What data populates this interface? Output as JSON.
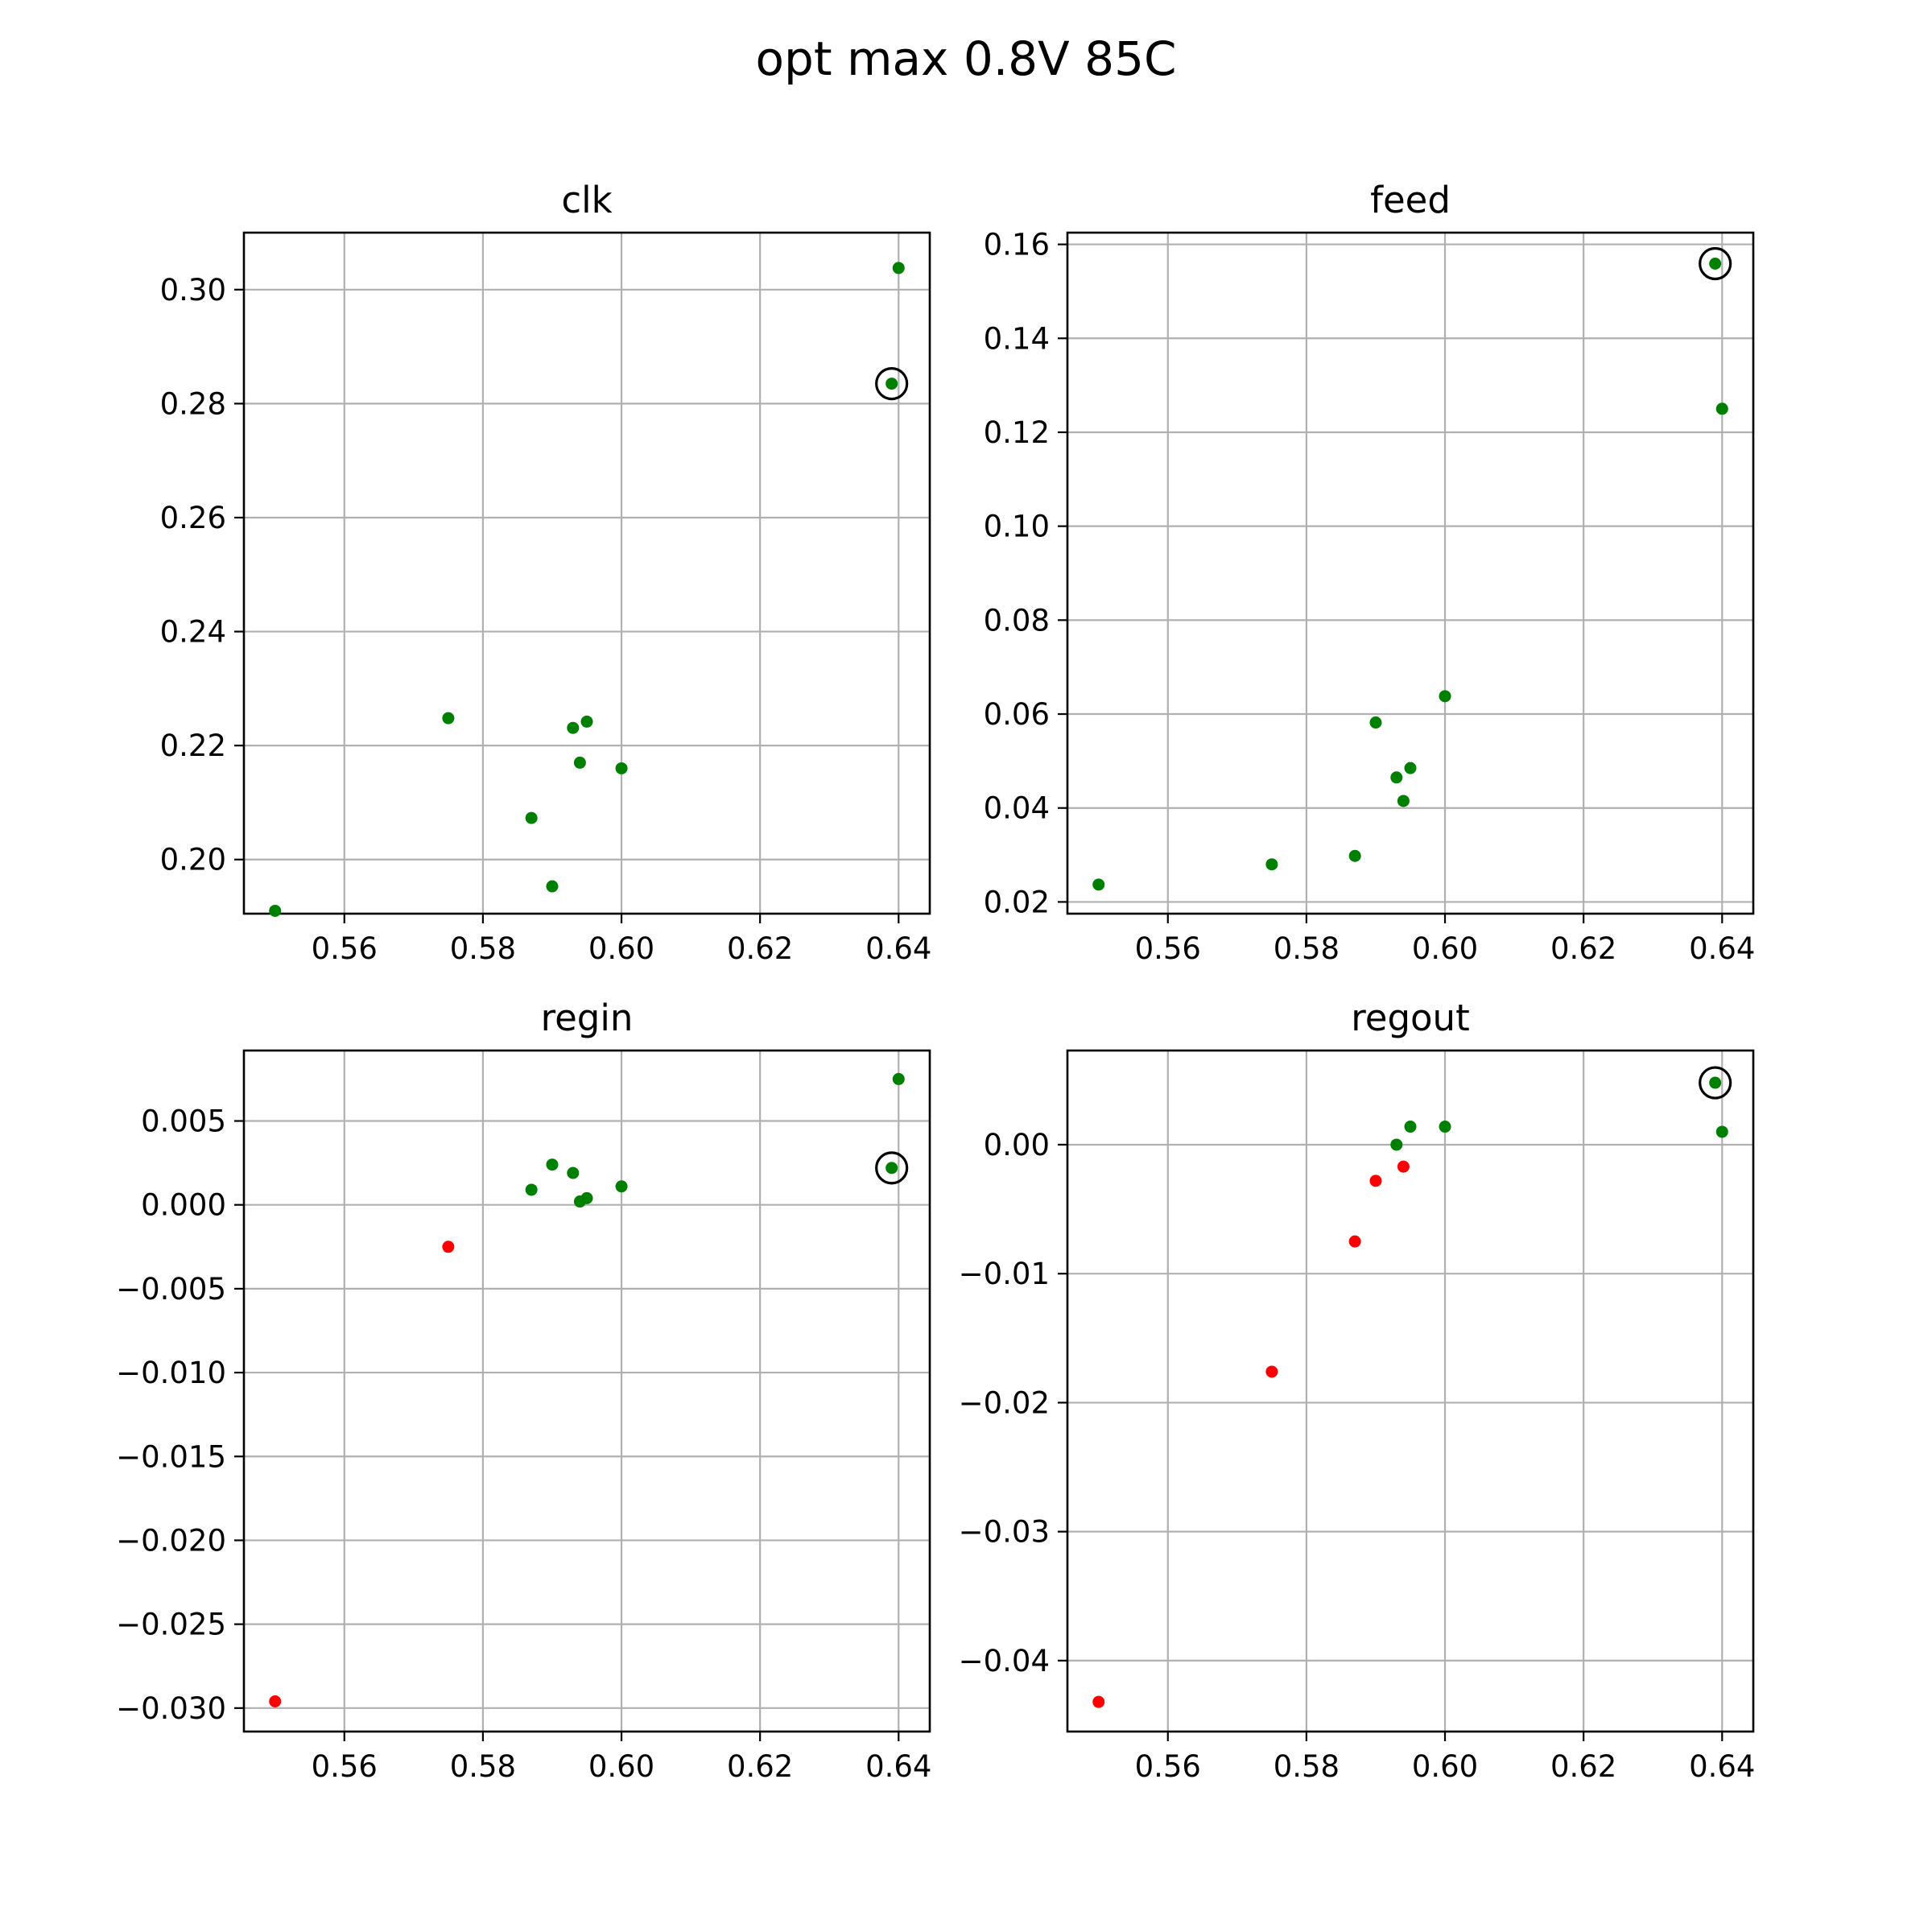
{
  "figure_title": "opt max 0.8V 85C",
  "colors": {
    "pass": "#008000",
    "fail": "#ff0000",
    "highlight": "#000000",
    "grid": "#b0b0b0"
  },
  "chart_data": [
    {
      "type": "scatter",
      "title": "clk",
      "xlabel": "",
      "ylabel": "",
      "grid": true,
      "xlim": [
        0.5455,
        0.6445
      ],
      "ylim": [
        0.1905,
        0.31
      ],
      "xticks": [
        0.56,
        0.58,
        0.6,
        0.62,
        0.64
      ],
      "xtick_labels": [
        "0.56",
        "0.58",
        "0.60",
        "0.62",
        "0.64"
      ],
      "yticks": [
        0.2,
        0.22,
        0.24,
        0.26,
        0.28,
        0.3
      ],
      "ytick_labels": [
        "0.20",
        "0.22",
        "0.24",
        "0.26",
        "0.28",
        "0.30"
      ],
      "points": [
        {
          "x": 0.55,
          "y": 0.191,
          "status": "pass"
        },
        {
          "x": 0.575,
          "y": 0.2248,
          "status": "pass"
        },
        {
          "x": 0.587,
          "y": 0.2073,
          "status": "pass"
        },
        {
          "x": 0.59,
          "y": 0.1953,
          "status": "pass"
        },
        {
          "x": 0.593,
          "y": 0.2231,
          "status": "pass"
        },
        {
          "x": 0.594,
          "y": 0.217,
          "status": "pass"
        },
        {
          "x": 0.595,
          "y": 0.2242,
          "status": "pass"
        },
        {
          "x": 0.6,
          "y": 0.216,
          "status": "pass"
        },
        {
          "x": 0.639,
          "y": 0.2835,
          "status": "pass",
          "highlighted": true
        },
        {
          "x": 0.64,
          "y": 0.3038,
          "status": "pass"
        }
      ]
    },
    {
      "type": "scatter",
      "title": "feed",
      "xlabel": "",
      "ylabel": "",
      "grid": true,
      "xlim": [
        0.5455,
        0.6445
      ],
      "ylim": [
        0.0175,
        0.1625
      ],
      "xticks": [
        0.56,
        0.58,
        0.6,
        0.62,
        0.64
      ],
      "xtick_labels": [
        "0.56",
        "0.58",
        "0.60",
        "0.62",
        "0.64"
      ],
      "yticks": [
        0.02,
        0.04,
        0.06,
        0.08,
        0.1,
        0.12,
        0.14,
        0.16
      ],
      "ytick_labels": [
        "0.02",
        "0.04",
        "0.06",
        "0.08",
        "0.10",
        "0.12",
        "0.14",
        "0.16"
      ],
      "points": [
        {
          "x": 0.55,
          "y": 0.0237,
          "status": "pass"
        },
        {
          "x": 0.575,
          "y": 0.028,
          "status": "pass"
        },
        {
          "x": 0.587,
          "y": 0.0298,
          "status": "pass"
        },
        {
          "x": 0.59,
          "y": 0.0582,
          "status": "pass"
        },
        {
          "x": 0.593,
          "y": 0.0465,
          "status": "pass"
        },
        {
          "x": 0.594,
          "y": 0.0415,
          "status": "pass"
        },
        {
          "x": 0.595,
          "y": 0.0485,
          "status": "pass"
        },
        {
          "x": 0.6,
          "y": 0.0638,
          "status": "pass"
        },
        {
          "x": 0.639,
          "y": 0.1559,
          "status": "pass",
          "highlighted": true
        },
        {
          "x": 0.64,
          "y": 0.125,
          "status": "pass"
        }
      ]
    },
    {
      "type": "scatter",
      "title": "regin",
      "xlabel": "",
      "ylabel": "",
      "grid": true,
      "xlim": [
        0.5455,
        0.6445
      ],
      "ylim": [
        -0.0314,
        0.0092
      ],
      "xticks": [
        0.56,
        0.58,
        0.6,
        0.62,
        0.64
      ],
      "xtick_labels": [
        "0.56",
        "0.58",
        "0.60",
        "0.62",
        "0.64"
      ],
      "yticks": [
        -0.03,
        -0.025,
        -0.02,
        -0.015,
        -0.01,
        -0.005,
        0.0,
        0.005
      ],
      "ytick_labels": [
        "−0.030",
        "−0.025",
        "−0.020",
        "−0.015",
        "−0.010",
        "−0.005",
        "0.000",
        "0.005"
      ],
      "points": [
        {
          "x": 0.55,
          "y": -0.0296,
          "status": "fail"
        },
        {
          "x": 0.575,
          "y": -0.0025,
          "status": "fail"
        },
        {
          "x": 0.587,
          "y": 0.0009,
          "status": "pass"
        },
        {
          "x": 0.59,
          "y": 0.0024,
          "status": "pass"
        },
        {
          "x": 0.593,
          "y": 0.0019,
          "status": "pass"
        },
        {
          "x": 0.594,
          "y": 0.0002,
          "status": "pass"
        },
        {
          "x": 0.595,
          "y": 0.0004,
          "status": "pass"
        },
        {
          "x": 0.6,
          "y": 0.0011,
          "status": "pass"
        },
        {
          "x": 0.639,
          "y": 0.0022,
          "status": "pass",
          "highlighted": true
        },
        {
          "x": 0.64,
          "y": 0.0075,
          "status": "pass"
        }
      ]
    },
    {
      "type": "scatter",
      "title": "regout",
      "xlabel": "",
      "ylabel": "",
      "grid": true,
      "xlim": [
        0.5455,
        0.6445
      ],
      "ylim": [
        -0.0455,
        0.0073
      ],
      "xticks": [
        0.56,
        0.58,
        0.6,
        0.62,
        0.64
      ],
      "xtick_labels": [
        "0.56",
        "0.58",
        "0.60",
        "0.62",
        "0.64"
      ],
      "yticks": [
        -0.04,
        -0.03,
        -0.02,
        -0.01,
        0.0
      ],
      "ytick_labels": [
        "−0.04",
        "−0.03",
        "−0.02",
        "−0.01",
        "0.00"
      ],
      "points": [
        {
          "x": 0.55,
          "y": -0.0432,
          "status": "fail"
        },
        {
          "x": 0.575,
          "y": -0.0176,
          "status": "fail"
        },
        {
          "x": 0.587,
          "y": -0.0075,
          "status": "fail"
        },
        {
          "x": 0.59,
          "y": -0.0028,
          "status": "fail"
        },
        {
          "x": 0.593,
          "y": 0.0,
          "status": "pass"
        },
        {
          "x": 0.594,
          "y": -0.0017,
          "status": "fail"
        },
        {
          "x": 0.595,
          "y": 0.0014,
          "status": "pass"
        },
        {
          "x": 0.6,
          "y": 0.0014,
          "status": "pass"
        },
        {
          "x": 0.639,
          "y": 0.0048,
          "status": "pass",
          "highlighted": true
        },
        {
          "x": 0.64,
          "y": 0.001,
          "status": "pass"
        }
      ]
    }
  ]
}
